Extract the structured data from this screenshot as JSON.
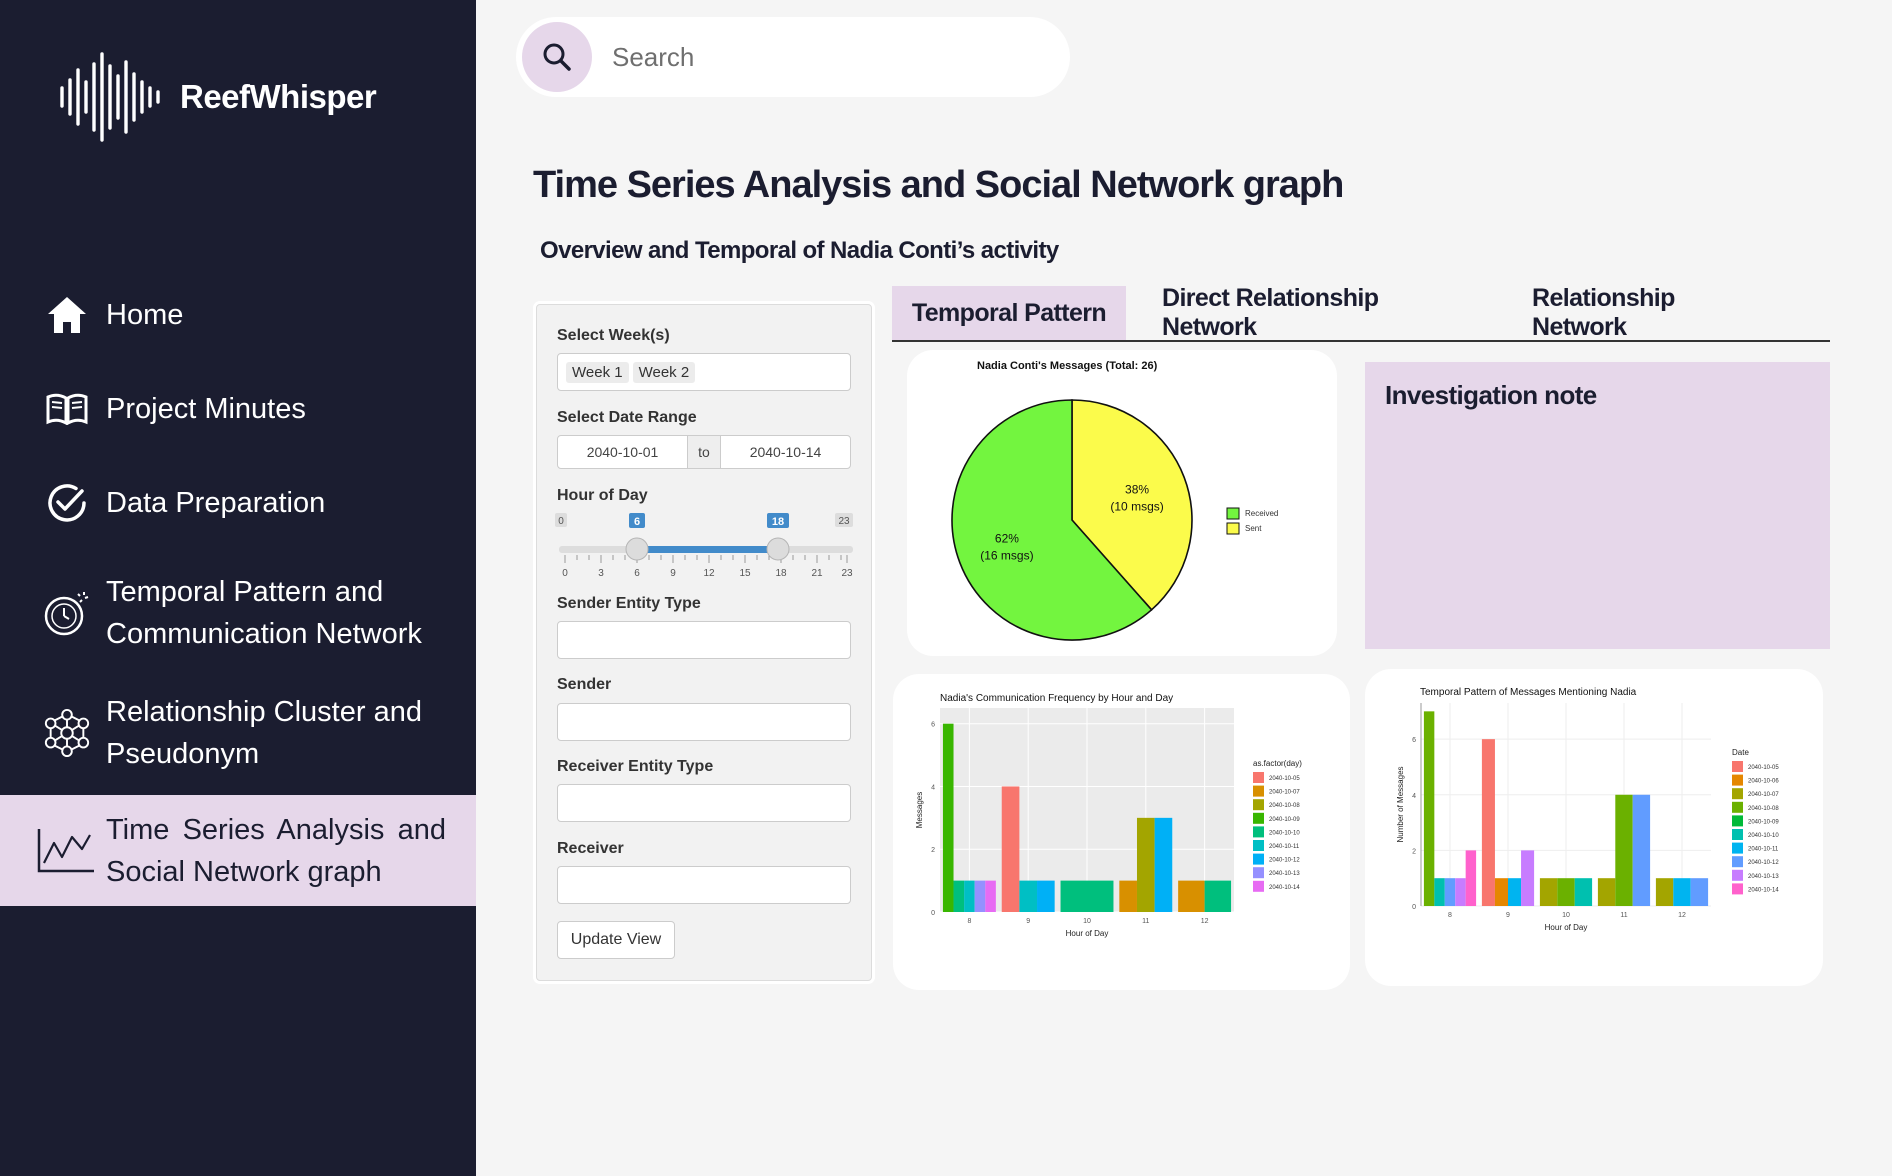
{
  "app": {
    "name": "ReefWhisper"
  },
  "sidebar": {
    "items": [
      {
        "label": "Home",
        "icon": "home-icon"
      },
      {
        "label": "Project Minutes",
        "icon": "book-icon"
      },
      {
        "label": "Data Preparation",
        "icon": "check-circle-icon"
      },
      {
        "label": "Temporal Pattern and Communication Network",
        "icon": "timer-icon"
      },
      {
        "label": "Relationship Cluster and Pseudonym",
        "icon": "network-icon"
      },
      {
        "label": "Time Series Analysis and Social Network graph",
        "icon": "line-chart-icon",
        "active": true
      }
    ]
  },
  "search": {
    "placeholder": "Search"
  },
  "page": {
    "title": "Time Series Analysis and Social Network graph",
    "subtitle": "Overview and Temporal of Nadia Conti’s activity"
  },
  "filters": {
    "weeks_label": "Select Week(s)",
    "weeks": [
      "Week 1",
      "Week 2"
    ],
    "date_label": "Select Date Range",
    "date_start": "2040-10-01",
    "date_sep": "to",
    "date_end": "2040-10-14",
    "hour_label": "Hour of Day",
    "hour_min": "0",
    "hour_max": "23",
    "hour_from": "6",
    "hour_to": "18",
    "hour_ticks": [
      "0",
      "3",
      "6",
      "9",
      "12",
      "15",
      "18",
      "21",
      "23"
    ],
    "sender_type_label": "Sender Entity Type",
    "sender_label": "Sender",
    "receiver_type_label": "Receiver Entity Type",
    "receiver_label": "Receiver",
    "update_label": "Update View"
  },
  "tabs": [
    "Temporal Pattern",
    "Direct Relationship Network",
    "Relationship Network"
  ],
  "note": {
    "title": "Investigation note"
  },
  "colors": {
    "sidebar": "#1b1d30",
    "accent": "#e6d7ea",
    "slider": "#428bca"
  },
  "chart_data": [
    {
      "type": "pie",
      "title": "Nadia Conti's Messages (Total: 26)",
      "slices": [
        {
          "name": "Received",
          "value": 16,
          "label_pct": "62%",
          "label_count": "(16 msgs)",
          "color": "#73f53f"
        },
        {
          "name": "Sent",
          "value": 10,
          "label_pct": "38%",
          "label_count": "(10 msgs)",
          "color": "#fbfb4b"
        }
      ]
    },
    {
      "type": "bar",
      "title": "Nadia's Communication Frequency by Hour and Day",
      "xlabel": "Hour of Day",
      "ylabel": "Messages",
      "legend_title": "as.factor(day)",
      "categories": [
        "8",
        "9",
        "10",
        "11",
        "12"
      ],
      "y_ticks": [
        "0",
        "2",
        "4",
        "6"
      ],
      "ylim": [
        0,
        6.5
      ],
      "series": [
        {
          "name": "2040-10-05",
          "color": "#f8766d"
        },
        {
          "name": "2040-10-07",
          "color": "#d89000"
        },
        {
          "name": "2040-10-08",
          "color": "#a3a500"
        },
        {
          "name": "2040-10-09",
          "color": "#39b600"
        },
        {
          "name": "2040-10-10",
          "color": "#00bf7d"
        },
        {
          "name": "2040-10-11",
          "color": "#00bfc4"
        },
        {
          "name": "2040-10-12",
          "color": "#00b0f6"
        },
        {
          "name": "2040-10-13",
          "color": "#9590ff"
        },
        {
          "name": "2040-10-14",
          "color": "#e76bf3"
        }
      ],
      "bars": [
        [
          {
            "series": "2040-10-09",
            "value": 6
          },
          {
            "series": "2040-10-10",
            "value": 1
          },
          {
            "series": "2040-10-11",
            "value": 1
          },
          {
            "series": "2040-10-13",
            "value": 1
          },
          {
            "series": "2040-10-14",
            "value": 1
          }
        ],
        [
          {
            "series": "2040-10-05",
            "value": 4
          },
          {
            "series": "2040-10-11",
            "value": 1
          },
          {
            "series": "2040-10-12",
            "value": 1
          }
        ],
        [
          {
            "series": "2040-10-10",
            "value": 1
          }
        ],
        [
          {
            "series": "2040-10-07",
            "value": 1
          },
          {
            "series": "2040-10-08",
            "value": 3
          },
          {
            "series": "2040-10-12",
            "value": 3
          }
        ],
        [
          {
            "series": "2040-10-07",
            "value": 1
          },
          {
            "series": "2040-10-10",
            "value": 1
          }
        ]
      ]
    },
    {
      "type": "bar",
      "title": "Temporal Pattern of Messages Mentioning Nadia",
      "xlabel": "Hour of Day",
      "ylabel": "Number of Messages",
      "legend_title": "Date",
      "categories": [
        "8",
        "9",
        "10",
        "11",
        "12"
      ],
      "y_ticks": [
        "0",
        "2",
        "4",
        "6"
      ],
      "ylim": [
        0,
        7.3
      ],
      "series": [
        {
          "name": "2040-10-05",
          "color": "#f8766d"
        },
        {
          "name": "2040-10-06",
          "color": "#e58700"
        },
        {
          "name": "2040-10-07",
          "color": "#a3a500"
        },
        {
          "name": "2040-10-08",
          "color": "#6bb100"
        },
        {
          "name": "2040-10-09",
          "color": "#00ba38"
        },
        {
          "name": "2040-10-10",
          "color": "#00c0af"
        },
        {
          "name": "2040-10-11",
          "color": "#00b4f0"
        },
        {
          "name": "2040-10-12",
          "color": "#619cff"
        },
        {
          "name": "2040-10-13",
          "color": "#c77cff"
        },
        {
          "name": "2040-10-14",
          "color": "#ff61cc"
        }
      ],
      "bars": [
        [
          {
            "series": "2040-10-08",
            "value": 7
          },
          {
            "series": "2040-10-10",
            "value": 1
          },
          {
            "series": "2040-10-12",
            "value": 1
          },
          {
            "series": "2040-10-13",
            "value": 1
          },
          {
            "series": "2040-10-14",
            "value": 2
          }
        ],
        [
          {
            "series": "2040-10-05",
            "value": 6
          },
          {
            "series": "2040-10-06",
            "value": 1
          },
          {
            "series": "2040-10-11",
            "value": 1
          },
          {
            "series": "2040-10-13",
            "value": 2
          }
        ],
        [
          {
            "series": "2040-10-07",
            "value": 1
          },
          {
            "series": "2040-10-08",
            "value": 1
          },
          {
            "series": "2040-10-10",
            "value": 1
          }
        ],
        [
          {
            "series": "2040-10-07",
            "value": 1
          },
          {
            "series": "2040-10-08",
            "value": 4
          },
          {
            "series": "2040-10-12",
            "value": 4
          }
        ],
        [
          {
            "series": "2040-10-07",
            "value": 1
          },
          {
            "series": "2040-10-11",
            "value": 1
          },
          {
            "series": "2040-10-12",
            "value": 1
          }
        ]
      ]
    }
  ]
}
